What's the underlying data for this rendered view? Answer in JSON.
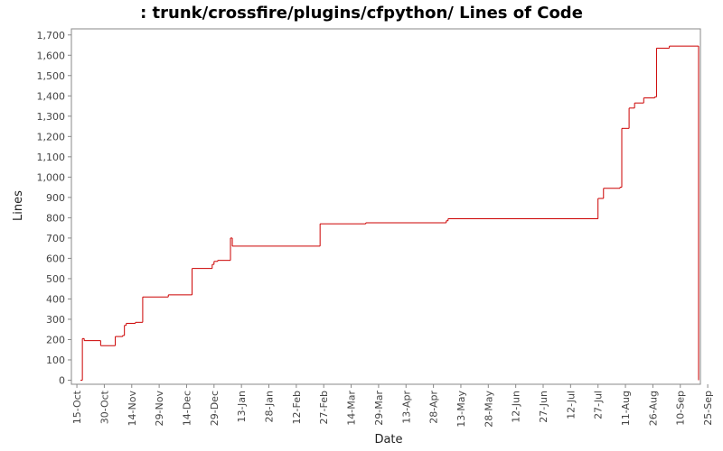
{
  "chart_data": {
    "type": "step-line",
    "title": ": trunk/crossfire/plugins/cfpython/ Lines of Code",
    "x_label": "Date",
    "y_label": "Lines",
    "x": [
      "17-Oct",
      "18-Oct",
      "19-Oct",
      "28-Oct",
      "5-Nov",
      "9-Nov",
      "10-Nov",
      "11-Nov",
      "16-Nov",
      "20-Nov",
      "4-Dec",
      "17-Dec",
      "28-Dec",
      "29-Dec",
      "31-Dec",
      "7-Jan",
      "8-Jan",
      "25-Feb",
      "22-Mar",
      "5-May",
      "6-May",
      "27-Jul",
      "30-Jul",
      "8-Aug",
      "9-Aug",
      "13-Aug",
      "16-Aug",
      "21-Aug",
      "27-Aug",
      "28-Aug",
      "4-Sep",
      "20-Sep"
    ],
    "series": [
      {
        "name": "Lines",
        "color": "#cc0000",
        "values": [
          0,
          205,
          195,
          170,
          215,
          220,
          270,
          280,
          285,
          410,
          420,
          550,
          570,
          585,
          590,
          700,
          660,
          770,
          775,
          785,
          795,
          895,
          945,
          950,
          1240,
          1340,
          1365,
          1390,
          1395,
          1635,
          1645,
          0
        ]
      }
    ],
    "xlim": [
      "12-Oct",
      "21-Sep"
    ],
    "xticks": [
      "15-Oct",
      "30-Oct",
      "14-Nov",
      "29-Nov",
      "14-Dec",
      "29-Dec",
      "13-Jan",
      "28-Jan",
      "12-Feb",
      "27-Feb",
      "14-Mar",
      "29-Mar",
      "13-Apr",
      "28-Apr",
      "13-May",
      "28-May",
      "12-Jun",
      "27-Jun",
      "12-Jul",
      "27-Jul",
      "11-Aug",
      "26-Aug",
      "10-Sep",
      "25-Sep"
    ],
    "ylim": [
      -20,
      1730
    ],
    "yticks": [
      0,
      100,
      200,
      300,
      400,
      500,
      600,
      700,
      800,
      900,
      {
        "value": 1000,
        "label": "1,000"
      },
      {
        "value": 1100,
        "label": "1,100"
      },
      {
        "value": 1200,
        "label": "1,200"
      },
      {
        "value": 1300,
        "label": "1,300"
      },
      {
        "value": 1400,
        "label": "1,400"
      },
      {
        "value": 1500,
        "label": "1,500"
      },
      {
        "value": 1600,
        "label": "1,600"
      },
      {
        "value": 1700,
        "label": "1,700"
      }
    ]
  }
}
